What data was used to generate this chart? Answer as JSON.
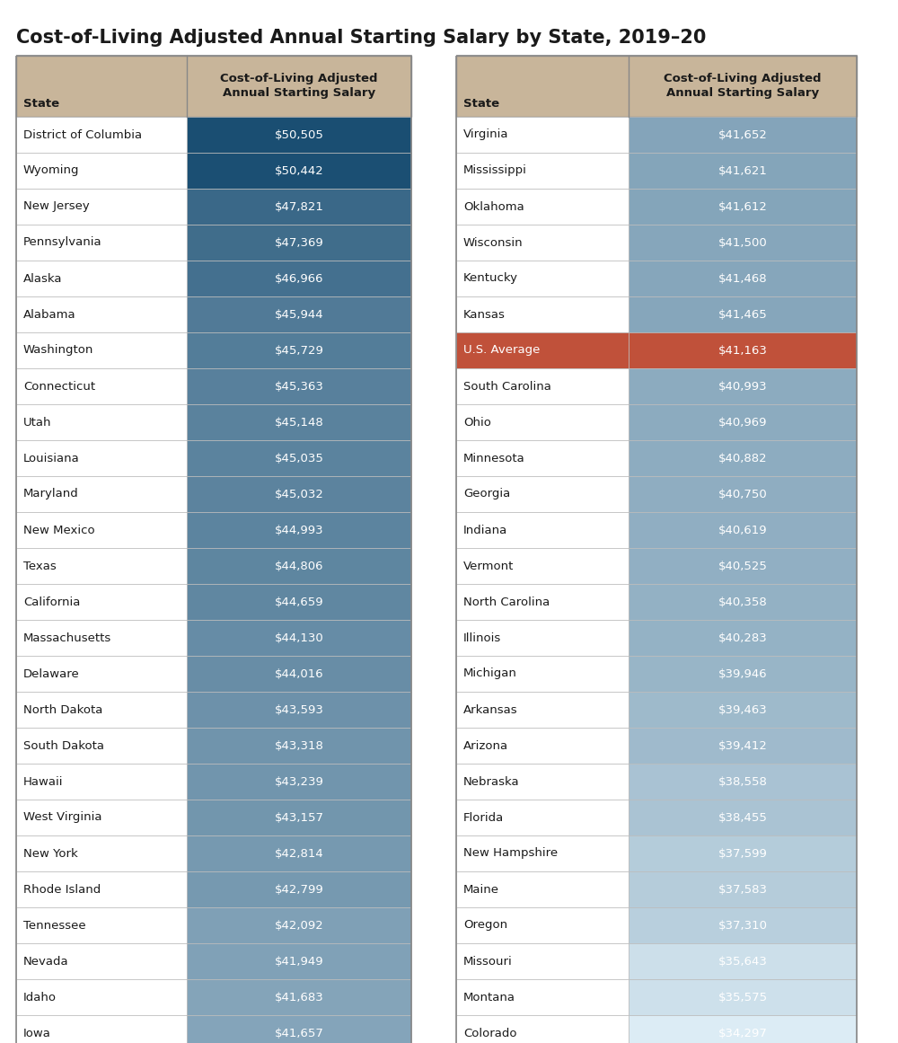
{
  "title": "Cost-of-Living Adjusted Annual Starting Salary by State, 2019–20",
  "col_header": "Cost-of-Living Adjusted\nAnnual Starting Salary",
  "header_bg": "#c8b59a",
  "header_text": "#1a1a1a",
  "left_table": [
    {
      "state": "District of Columbia",
      "salary": "$50,505",
      "value": 50505
    },
    {
      "state": "Wyoming",
      "salary": "$50,442",
      "value": 50442
    },
    {
      "state": "New Jersey",
      "salary": "$47,821",
      "value": 47821
    },
    {
      "state": "Pennsylvania",
      "salary": "$47,369",
      "value": 47369
    },
    {
      "state": "Alaska",
      "salary": "$46,966",
      "value": 46966
    },
    {
      "state": "Alabama",
      "salary": "$45,944",
      "value": 45944
    },
    {
      "state": "Washington",
      "salary": "$45,729",
      "value": 45729
    },
    {
      "state": "Connecticut",
      "salary": "$45,363",
      "value": 45363
    },
    {
      "state": "Utah",
      "salary": "$45,148",
      "value": 45148
    },
    {
      "state": "Louisiana",
      "salary": "$45,035",
      "value": 45035
    },
    {
      "state": "Maryland",
      "salary": "$45,032",
      "value": 45032
    },
    {
      "state": "New Mexico",
      "salary": "$44,993",
      "value": 44993
    },
    {
      "state": "Texas",
      "salary": "$44,806",
      "value": 44806
    },
    {
      "state": "California",
      "salary": "$44,659",
      "value": 44659
    },
    {
      "state": "Massachusetts",
      "salary": "$44,130",
      "value": 44130
    },
    {
      "state": "Delaware",
      "salary": "$44,016",
      "value": 44016
    },
    {
      "state": "North Dakota",
      "salary": "$43,593",
      "value": 43593
    },
    {
      "state": "South Dakota",
      "salary": "$43,318",
      "value": 43318
    },
    {
      "state": "Hawaii",
      "salary": "$43,239",
      "value": 43239
    },
    {
      "state": "West Virginia",
      "salary": "$43,157",
      "value": 43157
    },
    {
      "state": "New York",
      "salary": "$42,814",
      "value": 42814
    },
    {
      "state": "Rhode Island",
      "salary": "$42,799",
      "value": 42799
    },
    {
      "state": "Tennessee",
      "salary": "$42,092",
      "value": 42092
    },
    {
      "state": "Nevada",
      "salary": "$41,949",
      "value": 41949
    },
    {
      "state": "Idaho",
      "salary": "$41,683",
      "value": 41683
    },
    {
      "state": "Iowa",
      "salary": "$41,657",
      "value": 41657
    }
  ],
  "right_table": [
    {
      "state": "Virginia",
      "salary": "$41,652",
      "value": 41652,
      "special": false
    },
    {
      "state": "Mississippi",
      "salary": "$41,621",
      "value": 41621,
      "special": false
    },
    {
      "state": "Oklahoma",
      "salary": "$41,612",
      "value": 41612,
      "special": false
    },
    {
      "state": "Wisconsin",
      "salary": "$41,500",
      "value": 41500,
      "special": false
    },
    {
      "state": "Kentucky",
      "salary": "$41,468",
      "value": 41468,
      "special": false
    },
    {
      "state": "Kansas",
      "salary": "$41,465",
      "value": 41465,
      "special": false
    },
    {
      "state": "U.S. Average",
      "salary": "$41,163",
      "value": 41163,
      "special": true
    },
    {
      "state": "South Carolina",
      "salary": "$40,993",
      "value": 40993,
      "special": false
    },
    {
      "state": "Ohio",
      "salary": "$40,969",
      "value": 40969,
      "special": false
    },
    {
      "state": "Minnesota",
      "salary": "$40,882",
      "value": 40882,
      "special": false
    },
    {
      "state": "Georgia",
      "salary": "$40,750",
      "value": 40750,
      "special": false
    },
    {
      "state": "Indiana",
      "salary": "$40,619",
      "value": 40619,
      "special": false
    },
    {
      "state": "Vermont",
      "salary": "$40,525",
      "value": 40525,
      "special": false
    },
    {
      "state": "North Carolina",
      "salary": "$40,358",
      "value": 40358,
      "special": false
    },
    {
      "state": "Illinois",
      "salary": "$40,283",
      "value": 40283,
      "special": false
    },
    {
      "state": "Michigan",
      "salary": "$39,946",
      "value": 39946,
      "special": false
    },
    {
      "state": "Arkansas",
      "salary": "$39,463",
      "value": 39463,
      "special": false
    },
    {
      "state": "Arizona",
      "salary": "$39,412",
      "value": 39412,
      "special": false
    },
    {
      "state": "Nebraska",
      "salary": "$38,558",
      "value": 38558,
      "special": false
    },
    {
      "state": "Florida",
      "salary": "$38,455",
      "value": 38455,
      "special": false
    },
    {
      "state": "New Hampshire",
      "salary": "$37,599",
      "value": 37599,
      "special": false
    },
    {
      "state": "Maine",
      "salary": "$37,583",
      "value": 37583,
      "special": false
    },
    {
      "state": "Oregon",
      "salary": "$37,310",
      "value": 37310,
      "special": false
    },
    {
      "state": "Missouri",
      "salary": "$35,643",
      "value": 35643,
      "special": false
    },
    {
      "state": "Montana",
      "salary": "$35,575",
      "value": 35575,
      "special": false
    },
    {
      "state": "Colorado",
      "salary": "$34,297",
      "value": 34297,
      "special": false
    }
  ],
  "special_color": "#c0513a",
  "vmin": 34297,
  "vmax": 50505,
  "color_dark": [
    26,
    78,
    114
  ],
  "color_light": [
    220,
    236,
    245
  ],
  "bg_white": "#ffffff",
  "row_border": "#bbbbbb",
  "outer_border": "#888888",
  "title_fontsize": 15,
  "header_fontsize": 9.5,
  "row_fontsize": 9.5
}
